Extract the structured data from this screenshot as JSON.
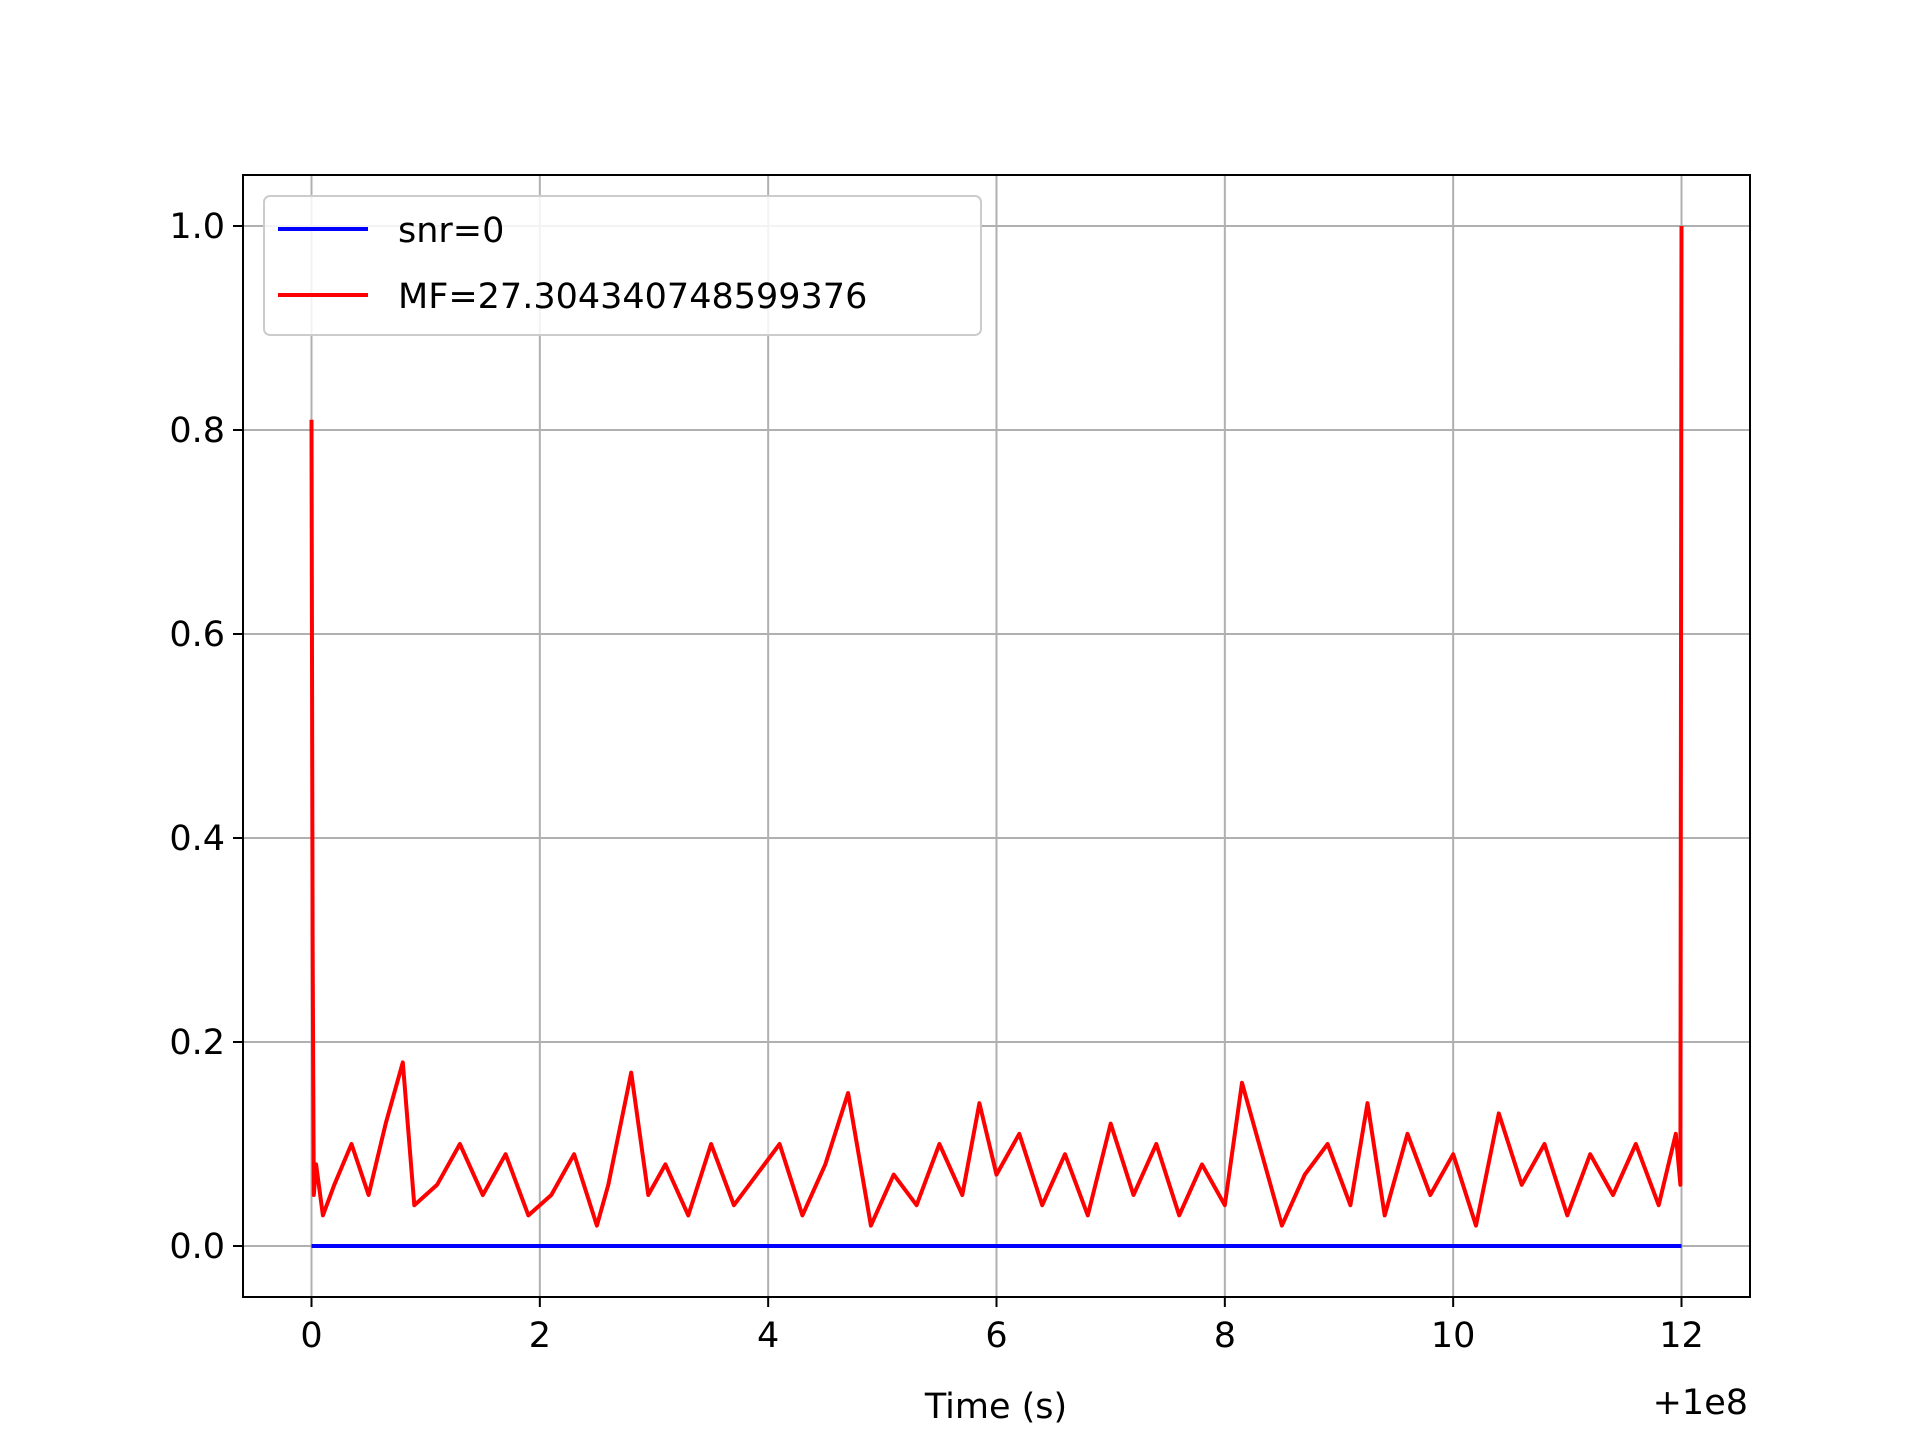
{
  "chart_data": {
    "type": "line",
    "title": "",
    "xlabel": "Time (s)",
    "ylabel": "",
    "x_offset_label": "+1e8",
    "xlim": [
      -0.6,
      12.6
    ],
    "ylim": [
      -0.05,
      1.05
    ],
    "xticks": [
      0,
      2,
      4,
      6,
      8,
      10,
      12
    ],
    "xtick_labels": [
      "0",
      "2",
      "4",
      "6",
      "8",
      "10",
      "12"
    ],
    "yticks": [
      0.0,
      0.2,
      0.4,
      0.6,
      0.8,
      1.0
    ],
    "ytick_labels": [
      "0.0",
      "0.2",
      "0.4",
      "0.6",
      "0.8",
      "1.0"
    ],
    "grid": true,
    "legend_position": "upper-left",
    "series": [
      {
        "name": "snr=0",
        "color": "#0000ff",
        "x": [
          0,
          12
        ],
        "y": [
          0,
          0
        ]
      },
      {
        "name": "MF=27.304340748599376",
        "color": "#ff0000",
        "x": [
          0,
          0.01,
          0.02,
          0.04,
          0.1,
          0.2,
          0.35,
          0.5,
          0.65,
          0.8,
          0.9,
          1.1,
          1.3,
          1.5,
          1.7,
          1.9,
          2.1,
          2.3,
          2.5,
          2.6,
          2.8,
          2.95,
          3.1,
          3.3,
          3.5,
          3.7,
          3.9,
          4.1,
          4.3,
          4.5,
          4.7,
          4.9,
          5.1,
          5.3,
          5.5,
          5.7,
          5.85,
          6.0,
          6.2,
          6.4,
          6.6,
          6.8,
          7.0,
          7.2,
          7.4,
          7.6,
          7.8,
          8.0,
          8.15,
          8.3,
          8.5,
          8.7,
          8.9,
          9.1,
          9.25,
          9.4,
          9.6,
          9.8,
          10.0,
          10.2,
          10.4,
          10.6,
          10.8,
          11.0,
          11.2,
          11.4,
          11.6,
          11.8,
          11.95,
          11.99,
          12.0
        ],
        "y": [
          0.81,
          0.3,
          0.05,
          0.08,
          0.03,
          0.06,
          0.1,
          0.05,
          0.12,
          0.18,
          0.04,
          0.06,
          0.1,
          0.05,
          0.09,
          0.03,
          0.05,
          0.09,
          0.02,
          0.06,
          0.17,
          0.05,
          0.08,
          0.03,
          0.1,
          0.04,
          0.07,
          0.1,
          0.03,
          0.08,
          0.15,
          0.02,
          0.07,
          0.04,
          0.1,
          0.05,
          0.14,
          0.07,
          0.11,
          0.04,
          0.09,
          0.03,
          0.12,
          0.05,
          0.1,
          0.03,
          0.08,
          0.04,
          0.16,
          0.1,
          0.02,
          0.07,
          0.1,
          0.04,
          0.14,
          0.03,
          0.11,
          0.05,
          0.09,
          0.02,
          0.13,
          0.06,
          0.1,
          0.03,
          0.09,
          0.05,
          0.1,
          0.04,
          0.11,
          0.06,
          1.0
        ]
      }
    ]
  }
}
